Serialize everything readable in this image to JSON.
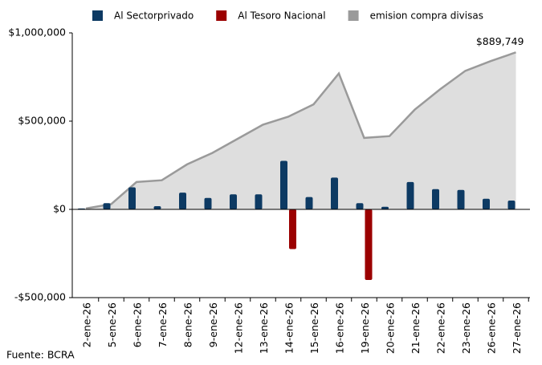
{
  "chart_data": {
    "type": "bar",
    "categories": [
      "2-ene-26",
      "5-ene-26",
      "6-ene-26",
      "7-ene-26",
      "8-ene-26",
      "9-ene-26",
      "12-ene-26",
      "13-ene-26",
      "14-ene-26",
      "15-ene-26",
      "16-ene-26",
      "19-ene-26",
      "20-ene-26",
      "21-ene-26",
      "22-ene-26",
      "23-ene-26",
      "26-ene-26",
      "27-ene-26"
    ],
    "series": [
      {
        "name": "Al Sectorprivado",
        "color": "#0d3a63",
        "type": "bar",
        "values": [
          5000,
          35000,
          125000,
          18000,
          95000,
          65000,
          85000,
          85000,
          275000,
          70000,
          180000,
          35000,
          15000,
          155000,
          115000,
          110000,
          60000,
          50000
        ]
      },
      {
        "name": "Al Tesoro Nacional",
        "color": "#9b0000",
        "type": "bar",
        "values": [
          null,
          null,
          null,
          null,
          null,
          null,
          null,
          null,
          -225000,
          null,
          null,
          -400000,
          null,
          null,
          null,
          null,
          null,
          null
        ]
      },
      {
        "name": "emision compra divisas",
        "color": "#9a9a9a",
        "fill": "#dedede",
        "type": "area",
        "values": [
          5000,
          30000,
          155000,
          165000,
          255000,
          320000,
          400000,
          480000,
          525000,
          595000,
          770000,
          405000,
          415000,
          565000,
          680000,
          785000,
          840000,
          889749
        ],
        "value_labels": [
          null,
          null,
          null,
          null,
          null,
          null,
          null,
          null,
          null,
          null,
          null,
          null,
          null,
          null,
          null,
          null,
          null,
          "$889,749"
        ]
      }
    ],
    "ylim": [
      -500000,
      1000000
    ],
    "yticks": [
      {
        "value": -500000,
        "label": "-$500,000"
      },
      {
        "value": 0,
        "label": "$0"
      },
      {
        "value": 500000,
        "label": "$500,000"
      },
      {
        "value": 1000000,
        "label": "$1,000,000"
      }
    ],
    "source": "Fuente: BCRA"
  }
}
